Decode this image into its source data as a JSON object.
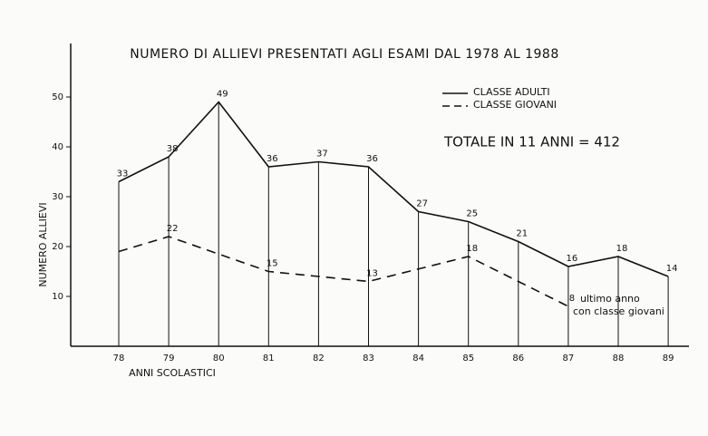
{
  "chart_data": {
    "type": "line",
    "title": "NUMERO DI ALLIEVI PRESENTATI AGLI ESAMI DAL 1978 AL 1988",
    "y_label": "NUMERO ALLIEVI",
    "x_label": "ANNI SCOLASTICI",
    "categories": [
      "78",
      "79",
      "80",
      "81",
      "82",
      "83",
      "84",
      "85",
      "86",
      "87",
      "88",
      "89"
    ],
    "series": [
      {
        "name": "CLASSE ADULTI",
        "color": "#111111",
        "dash": false,
        "values": [
          33,
          38,
          49,
          36,
          37,
          36,
          27,
          25,
          21,
          16,
          18,
          14
        ],
        "value_labels": [
          "33",
          "38",
          "49",
          "36",
          "37",
          "36",
          "27",
          "25",
          "21",
          "16",
          "18",
          "14"
        ]
      },
      {
        "name": "CLASSE GIOVANI",
        "color": "#111111",
        "dash": true,
        "values": [
          19,
          22,
          18.5,
          15,
          14,
          13,
          15.5,
          18,
          13,
          8,
          null,
          null
        ],
        "value_labels": [
          null,
          "22",
          null,
          "15",
          null,
          "13",
          null,
          "18",
          null,
          "8",
          null,
          null
        ]
      }
    ],
    "ylim": [
      0,
      60
    ],
    "yticks": [
      10,
      20,
      30,
      40,
      50
    ],
    "annotations": [
      "TOTALE IN 11 ANNI = 412",
      "ultimo anno",
      "con classe giovani"
    ]
  }
}
